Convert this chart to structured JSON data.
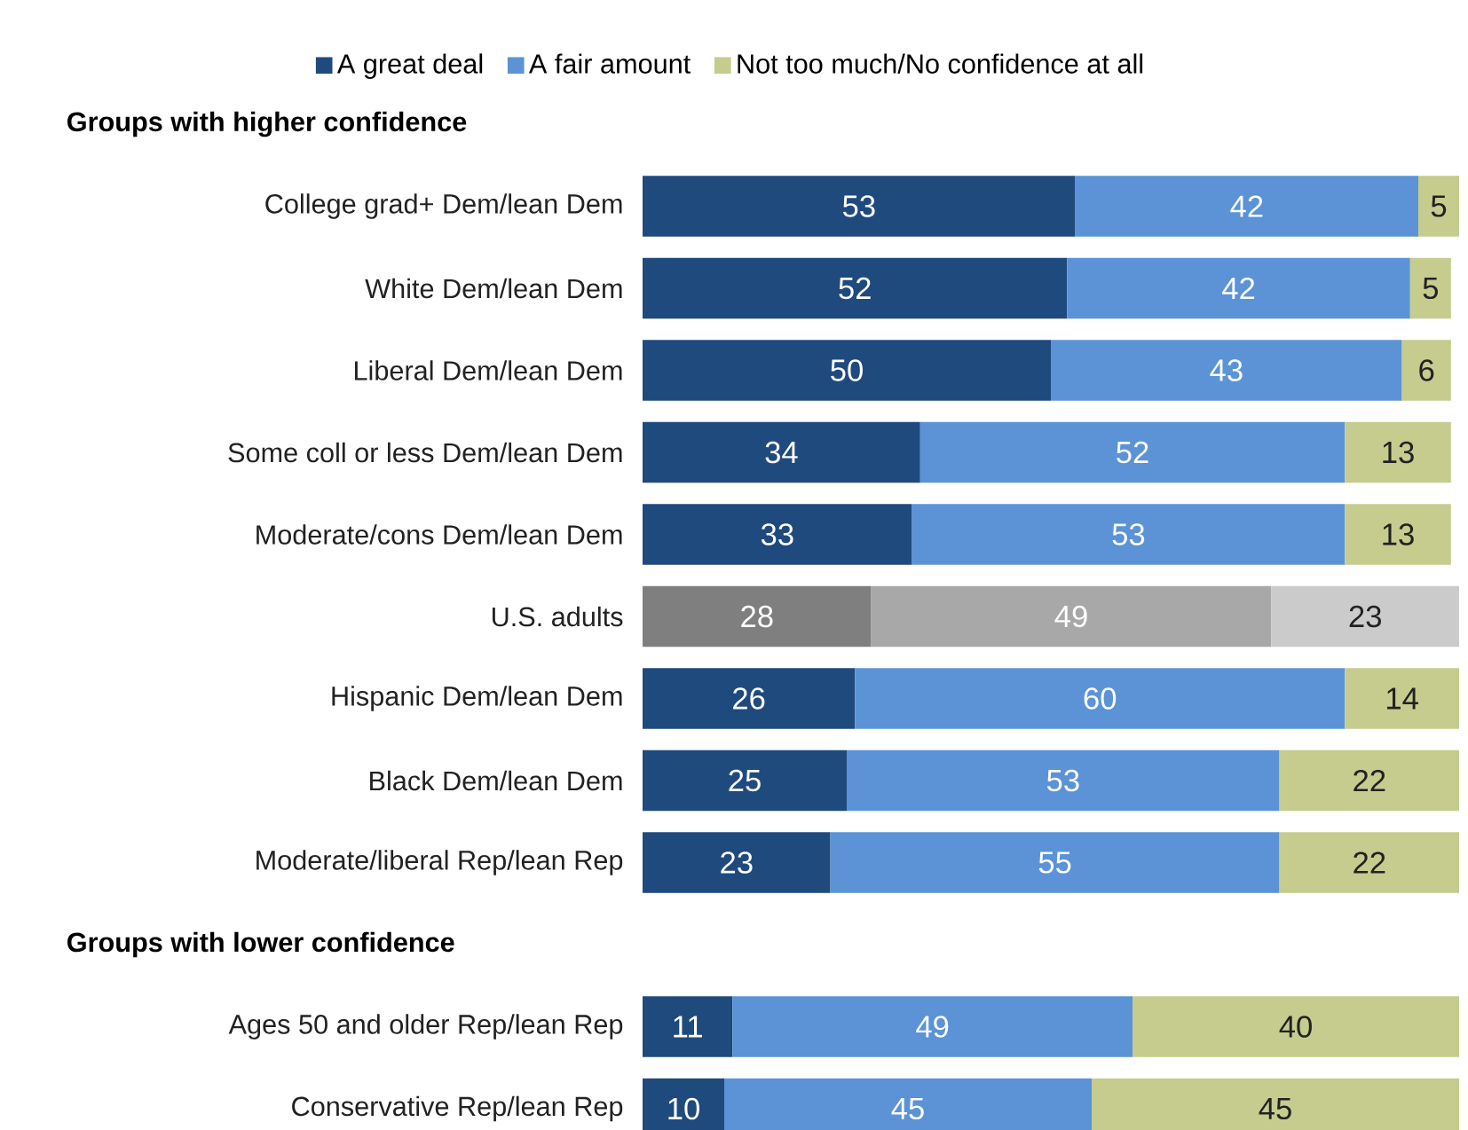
{
  "chart_data": {
    "type": "bar",
    "orientation": "horizontal",
    "stacked": true,
    "data_labels": true,
    "legend": "top",
    "categories": [
      null,
      "College grad+ Dem/lean Dem",
      "White Dem/lean Dem",
      "Liberal Dem/lean Dem",
      "Some coll or less Dem/lean Dem",
      "Moderate/cons Dem/lean Dem",
      "U.S. adults",
      "Hispanic Dem/lean Dem",
      "Black Dem/lean Dem",
      "Moderate/liberal Rep/lean Rep",
      null,
      "Ages 50 and older Rep/lean Rep",
      "Conservative Rep/lean Rep"
    ],
    "series": [
      {
        "name": "A great deal",
        "color": "#1f4a7e",
        "colors": [
          "#1f4a7e",
          "#1f4a7e",
          "#1f4a7e",
          "#1f4a7e",
          "#1f4a7e",
          "#1f4a7e",
          "#7f7f7f",
          "#1f4a7e",
          "#1f4a7e",
          "#1f4a7e",
          "#1f4a7e",
          "#1f4a7e",
          "#1f4a7e"
        ],
        "values": [
          null,
          53,
          52,
          50,
          34,
          33,
          28,
          26,
          25,
          23,
          null,
          11,
          10
        ]
      },
      {
        "name": "A fair amount",
        "color": "#5b93d6",
        "colors": [
          "#5b93d6",
          "#5b93d6",
          "#5b93d6",
          "#5b93d6",
          "#5b93d6",
          "#5b93d6",
          "#a8a8a8",
          "#5b93d6",
          "#5b93d6",
          "#5b93d6",
          "#5b93d6",
          "#5b93d6",
          "#5b93d6"
        ],
        "values": [
          null,
          42,
          42,
          43,
          52,
          53,
          49,
          60,
          53,
          55,
          null,
          49,
          45
        ]
      },
      {
        "name": "Not too much/No confidence at all",
        "color": "#c5cc8e",
        "colors": [
          "#c5cc8e",
          "#c5cc8e",
          "#c5cc8e",
          "#c5cc8e",
          "#c5cc8e",
          "#c5cc8e",
          "#cbcbcb",
          "#c5cc8e",
          "#c5cc8e",
          "#c5cc8e",
          "#c5cc8e",
          "#c5cc8e",
          "#c5cc8e"
        ],
        "values": [
          null,
          5,
          5,
          6,
          13,
          13,
          23,
          14,
          22,
          22,
          null,
          40,
          45
        ]
      }
    ],
    "annotations": [
      "Groups with higher confidence",
      "Groups with lower confidence"
    ]
  }
}
